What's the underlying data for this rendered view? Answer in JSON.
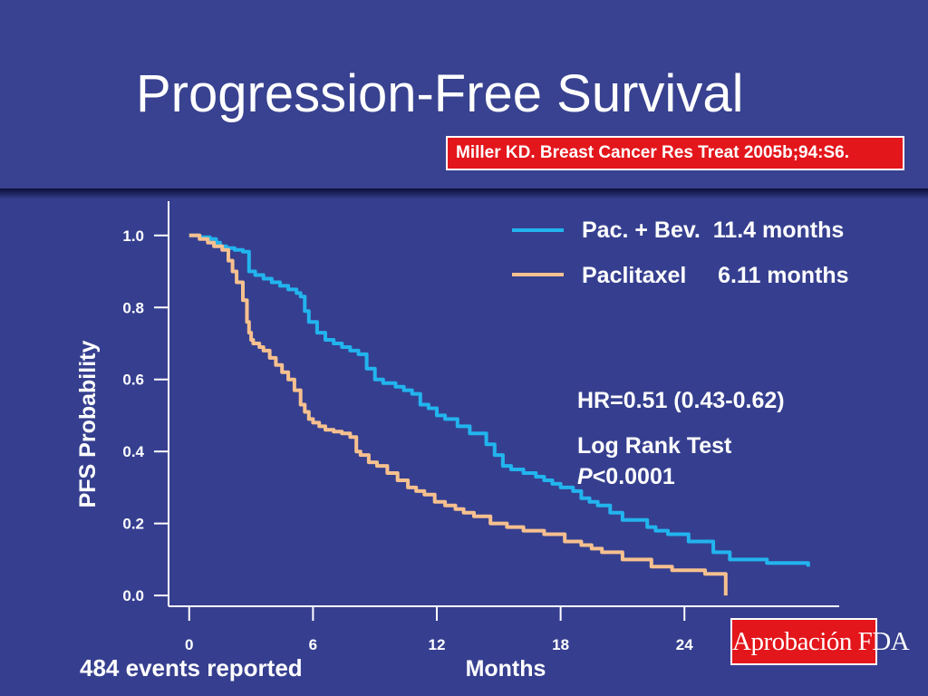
{
  "slide": {
    "title": "Progression-Free Survival",
    "citation": "Miller KD. Breast Cancer Res Treat 2005b;94:S6.",
    "badge": "Aprobación FDA",
    "events_note": "484 events reported"
  },
  "colors": {
    "background": "#363f8f",
    "accent_red": "#e3161b",
    "pac_bev": "#22b4ee",
    "paclitaxel": "#f6c08f"
  },
  "chart_data": {
    "type": "line",
    "xlabel": "Months",
    "ylabel": "PFS Probability",
    "xlim": [
      -1,
      31.5
    ],
    "ylim": [
      -0.03,
      1.07
    ],
    "xticks": [
      0,
      6,
      12,
      18,
      24
    ],
    "yticks": [
      0.0,
      0.2,
      0.4,
      0.6,
      0.8,
      1.0
    ],
    "ytick_labels": [
      "0.0",
      "0.2",
      "0.4",
      "0.6",
      "0.8",
      "1.0"
    ],
    "legend_placement": "top-right",
    "series": [
      {
        "name": "Pac. + Bev.  11.4 months",
        "x": [
          0,
          0.5,
          1,
          1.3,
          1.5,
          1.8,
          2.2,
          2.6,
          2.9,
          3.2,
          3.6,
          4,
          4.4,
          4.8,
          5.2,
          5.4,
          5.6,
          5.8,
          6.2,
          6.6,
          7,
          7.4,
          7.8,
          8.2,
          8.6,
          9,
          9.4,
          10,
          10.4,
          10.8,
          11.2,
          11.6,
          12,
          12.4,
          13,
          13.6,
          14,
          14.4,
          14.8,
          15.2,
          15.6,
          16.2,
          16.8,
          17.2,
          17.6,
          18,
          18.6,
          19,
          19.4,
          19.8,
          20.4,
          21,
          22.2,
          22.6,
          23.2,
          24.2,
          25.4,
          26.2,
          28,
          30
        ],
        "y": [
          1.0,
          0.995,
          0.99,
          0.98,
          0.97,
          0.965,
          0.96,
          0.955,
          0.9,
          0.89,
          0.88,
          0.87,
          0.86,
          0.85,
          0.84,
          0.83,
          0.79,
          0.76,
          0.73,
          0.71,
          0.7,
          0.69,
          0.68,
          0.67,
          0.63,
          0.6,
          0.59,
          0.58,
          0.57,
          0.56,
          0.53,
          0.52,
          0.5,
          0.49,
          0.47,
          0.45,
          0.45,
          0.42,
          0.39,
          0.36,
          0.35,
          0.34,
          0.33,
          0.32,
          0.31,
          0.3,
          0.29,
          0.27,
          0.26,
          0.25,
          0.23,
          0.21,
          0.19,
          0.18,
          0.17,
          0.15,
          0.12,
          0.1,
          0.09,
          0.08
        ]
      },
      {
        "name": "Paclitaxel     6.11 months",
        "x": [
          0,
          0.5,
          0.9,
          1.2,
          1.6,
          1.9,
          2.1,
          2.3,
          2.6,
          2.8,
          2.9,
          3,
          3.1,
          3.4,
          3.6,
          3.9,
          4.2,
          4.5,
          4.8,
          5.1,
          5.4,
          5.6,
          5.8,
          6,
          6.3,
          6.6,
          7,
          7.4,
          7.8,
          8.1,
          8.3,
          8.7,
          9.1,
          9.6,
          10.1,
          10.6,
          11,
          11.4,
          11.9,
          12.4,
          12.9,
          13.3,
          13.8,
          14.6,
          15.4,
          16.2,
          17.2,
          18.2,
          19,
          19.5,
          20,
          21,
          22.4,
          23.4,
          25,
          25.9,
          26
        ],
        "y": [
          1.0,
          0.99,
          0.98,
          0.97,
          0.96,
          0.93,
          0.9,
          0.87,
          0.82,
          0.76,
          0.73,
          0.71,
          0.7,
          0.69,
          0.68,
          0.66,
          0.64,
          0.62,
          0.6,
          0.57,
          0.53,
          0.51,
          0.49,
          0.48,
          0.47,
          0.46,
          0.455,
          0.45,
          0.44,
          0.4,
          0.39,
          0.37,
          0.36,
          0.34,
          0.32,
          0.3,
          0.29,
          0.28,
          0.26,
          0.25,
          0.24,
          0.23,
          0.22,
          0.2,
          0.19,
          0.18,
          0.17,
          0.15,
          0.14,
          0.13,
          0.12,
          0.1,
          0.08,
          0.07,
          0.06,
          0.06,
          0.0
        ]
      }
    ],
    "annotations": [
      "HR=0.51 (0.43-0.62)",
      "Log Rank Test",
      "<0.0001"
    ],
    "annotation_prefix_italic": "P"
  }
}
